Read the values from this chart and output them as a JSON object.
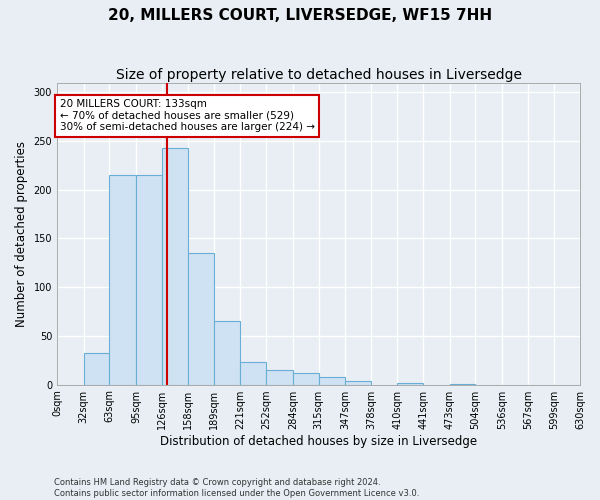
{
  "title": "20, MILLERS COURT, LIVERSEDGE, WF15 7HH",
  "subtitle": "Size of property relative to detached houses in Liversedge",
  "xlabel": "Distribution of detached houses by size in Liversedge",
  "ylabel": "Number of detached properties",
  "bar_values": [
    0,
    32,
    215,
    215,
    243,
    135,
    65,
    23,
    15,
    12,
    8,
    4,
    0,
    2,
    0,
    1,
    0,
    0,
    0,
    0
  ],
  "bin_edges": [
    0,
    32,
    63,
    95,
    126,
    158,
    189,
    221,
    252,
    284,
    315,
    347,
    378,
    410,
    441,
    473,
    504,
    536,
    567,
    599,
    630
  ],
  "tick_labels": [
    "0sqm",
    "32sqm",
    "63sqm",
    "95sqm",
    "126sqm",
    "158sqm",
    "189sqm",
    "221sqm",
    "252sqm",
    "284sqm",
    "315sqm",
    "347sqm",
    "378sqm",
    "410sqm",
    "441sqm",
    "473sqm",
    "504sqm",
    "536sqm",
    "567sqm",
    "599sqm",
    "630sqm"
  ],
  "bar_color": "#cfe2f3",
  "bar_edge_color": "#6aaed6",
  "vline_x": 133,
  "vline_color": "#cc0000",
  "annotation_text": "20 MILLERS COURT: 133sqm\n← 70% of detached houses are smaller (529)\n30% of semi-detached houses are larger (224) →",
  "annotation_box_color": "#ffffff",
  "annotation_box_edge": "#cc0000",
  "ylim": [
    0,
    310
  ],
  "yticks": [
    0,
    50,
    100,
    150,
    200,
    250,
    300
  ],
  "footer_text": "Contains HM Land Registry data © Crown copyright and database right 2024.\nContains public sector information licensed under the Open Government Licence v3.0.",
  "bg_color": "#e8eef4",
  "plot_bg_color": "#e8eef4",
  "grid_color": "#ffffff",
  "title_fontsize": 11,
  "subtitle_fontsize": 10,
  "axis_fontsize": 8.5,
  "tick_fontsize": 7,
  "footer_fontsize": 6,
  "annotation_fontsize": 7.5
}
